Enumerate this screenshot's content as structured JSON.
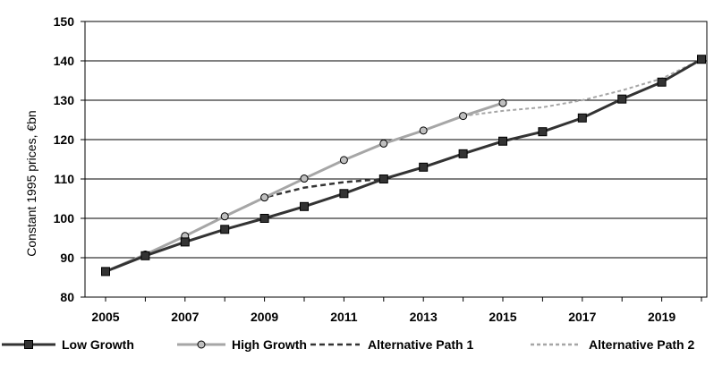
{
  "chart_data": {
    "type": "line",
    "title": "",
    "xlabel": "",
    "ylabel": "Constant 1995 prices, €bn",
    "xlim": [
      2005,
      2020
    ],
    "ylim": [
      80,
      150
    ],
    "x_ticks": [
      2005,
      2007,
      2009,
      2011,
      2013,
      2015,
      2017,
      2019
    ],
    "y_ticks": [
      80,
      90,
      100,
      110,
      120,
      130,
      140,
      150
    ],
    "grid": "horizontal",
    "legend_position": "bottom",
    "series": [
      {
        "name": "Low Growth",
        "color": "#333333",
        "line": "solid",
        "marker": "square",
        "points": [
          [
            2005,
            86.5
          ],
          [
            2006,
            90.5
          ],
          [
            2007,
            94
          ],
          [
            2008,
            97.2
          ],
          [
            2009,
            100
          ],
          [
            2010,
            103
          ],
          [
            2011,
            106.3
          ],
          [
            2012,
            110
          ],
          [
            2013,
            113
          ],
          [
            2014,
            116.4
          ],
          [
            2015,
            119.6
          ],
          [
            2016,
            122
          ],
          [
            2017,
            125.5
          ],
          [
            2018,
            130.3
          ],
          [
            2019,
            134.6
          ],
          [
            2020,
            140.4
          ]
        ]
      },
      {
        "name": "High Growth",
        "color": "#a6a6a6",
        "line": "solid",
        "marker": "circle",
        "points": [
          [
            2005,
            86.5
          ],
          [
            2006,
            90.8
          ],
          [
            2007,
            95.5
          ],
          [
            2008,
            100.5
          ],
          [
            2009,
            105.3
          ],
          [
            2010,
            110.1
          ],
          [
            2011,
            114.8
          ],
          [
            2012,
            119
          ],
          [
            2013,
            122.3
          ],
          [
            2014,
            126
          ],
          [
            2015,
            129.3
          ]
        ]
      },
      {
        "name": "Alternative Path 1",
        "color": "#333333",
        "line": "dashed",
        "marker": "none",
        "points": [
          [
            2005,
            86.5
          ],
          [
            2006,
            90.8
          ],
          [
            2007,
            95.5
          ],
          [
            2008,
            100.5
          ],
          [
            2009,
            105.3
          ],
          [
            2010,
            107.8
          ],
          [
            2011,
            109.2
          ],
          [
            2012,
            110
          ]
        ]
      },
      {
        "name": "Alternative Path 2",
        "color": "#a6a6a6",
        "line": "dashed",
        "marker": "none",
        "points": [
          [
            2014,
            126
          ],
          [
            2015,
            127.3
          ],
          [
            2016,
            128.2
          ],
          [
            2017,
            130
          ],
          [
            2018,
            132.5
          ],
          [
            2019,
            135.5
          ],
          [
            2020,
            140.4
          ]
        ]
      }
    ]
  }
}
